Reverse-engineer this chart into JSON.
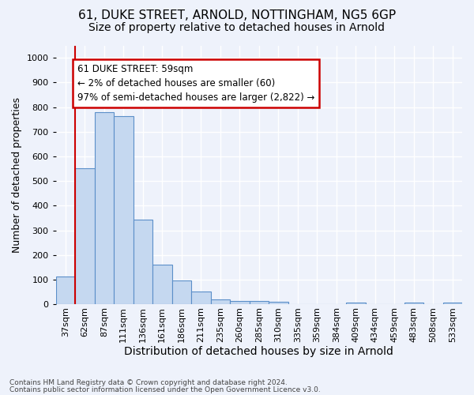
{
  "title1": "61, DUKE STREET, ARNOLD, NOTTINGHAM, NG5 6GP",
  "title2": "Size of property relative to detached houses in Arnold",
  "xlabel": "Distribution of detached houses by size in Arnold",
  "ylabel": "Number of detached properties",
  "categories": [
    "37sqm",
    "62sqm",
    "87sqm",
    "111sqm",
    "136sqm",
    "161sqm",
    "186sqm",
    "211sqm",
    "235sqm",
    "260sqm",
    "285sqm",
    "310sqm",
    "335sqm",
    "359sqm",
    "384sqm",
    "409sqm",
    "434sqm",
    "459sqm",
    "483sqm",
    "508sqm",
    "533sqm"
  ],
  "values": [
    113,
    553,
    778,
    763,
    345,
    160,
    97,
    52,
    20,
    13,
    13,
    10,
    0,
    0,
    0,
    8,
    0,
    0,
    8,
    0,
    8
  ],
  "bar_color": "#c5d8f0",
  "bar_edge_color": "#5b8fc9",
  "highlight_line_color": "#cc0000",
  "annotation_text": "61 DUKE STREET: 59sqm\n← 2% of detached houses are smaller (60)\n97% of semi-detached houses are larger (2,822) →",
  "annotation_box_color": "#ffffff",
  "annotation_box_edge_color": "#cc0000",
  "ylim": [
    0,
    1050
  ],
  "yticks": [
    0,
    100,
    200,
    300,
    400,
    500,
    600,
    700,
    800,
    900,
    1000
  ],
  "footer1": "Contains HM Land Registry data © Crown copyright and database right 2024.",
  "footer2": "Contains public sector information licensed under the Open Government Licence v3.0.",
  "bg_color": "#eef2fb",
  "grid_color": "#ffffff",
  "title1_fontsize": 11,
  "title2_fontsize": 10,
  "ylabel_fontsize": 9,
  "xlabel_fontsize": 10,
  "tick_fontsize": 8,
  "footer_fontsize": 6.5,
  "annot_fontsize": 8.5
}
